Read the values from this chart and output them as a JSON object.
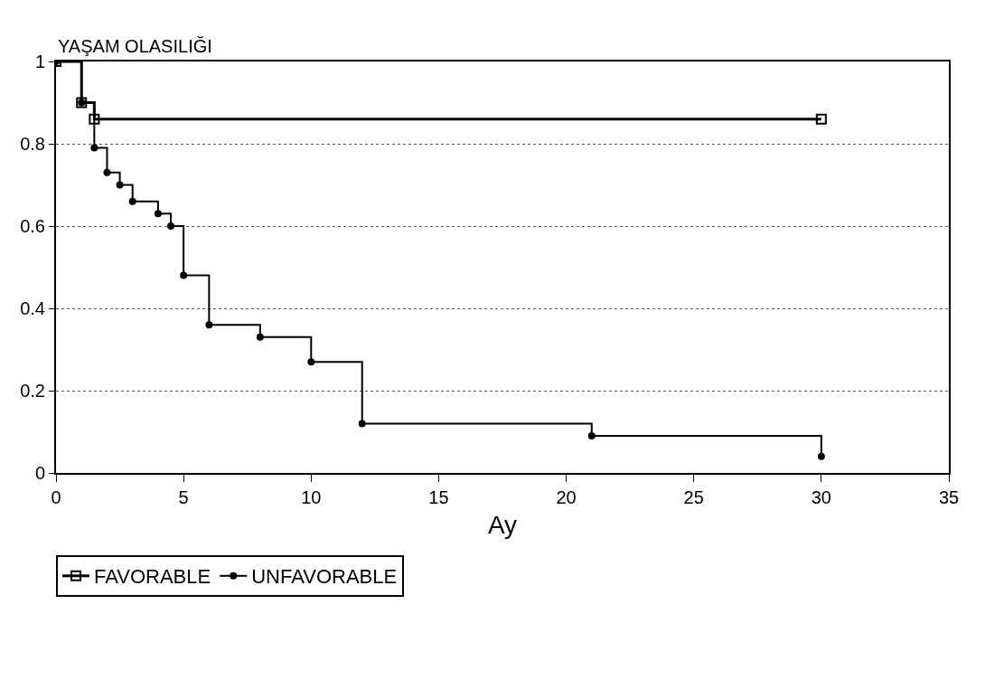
{
  "chart_data": {
    "type": "step",
    "ylabel": "YAŞAM OLASILIĞI",
    "xlabel": "Ay",
    "xlim": [
      0,
      35
    ],
    "xticks": [
      0,
      5,
      10,
      15,
      20,
      25,
      30,
      35
    ],
    "ylim": [
      0,
      1
    ],
    "yticks": [
      0,
      0.2,
      0.4,
      0.6,
      0.8,
      1
    ],
    "grid": "y",
    "legend": "bottom",
    "line_style": "solid",
    "series": [
      {
        "name": "FAVORABLE",
        "color": "#000000",
        "marker": "square",
        "x": [
          0,
          1,
          1.5,
          30
        ],
        "values": [
          1,
          0.9,
          0.86,
          0.86
        ]
      },
      {
        "name": "UNFAVORABLE",
        "color": "#000000",
        "marker": "circle",
        "x": [
          0,
          1,
          1.5,
          2,
          2.5,
          3,
          4,
          4.5,
          5,
          6,
          8,
          10,
          12,
          21,
          30
        ],
        "values": [
          1,
          0.9,
          0.79,
          0.73,
          0.7,
          0.66,
          0.63,
          0.6,
          0.48,
          0.36,
          0.33,
          0.27,
          0.12,
          0.09,
          0.04
        ]
      }
    ]
  }
}
